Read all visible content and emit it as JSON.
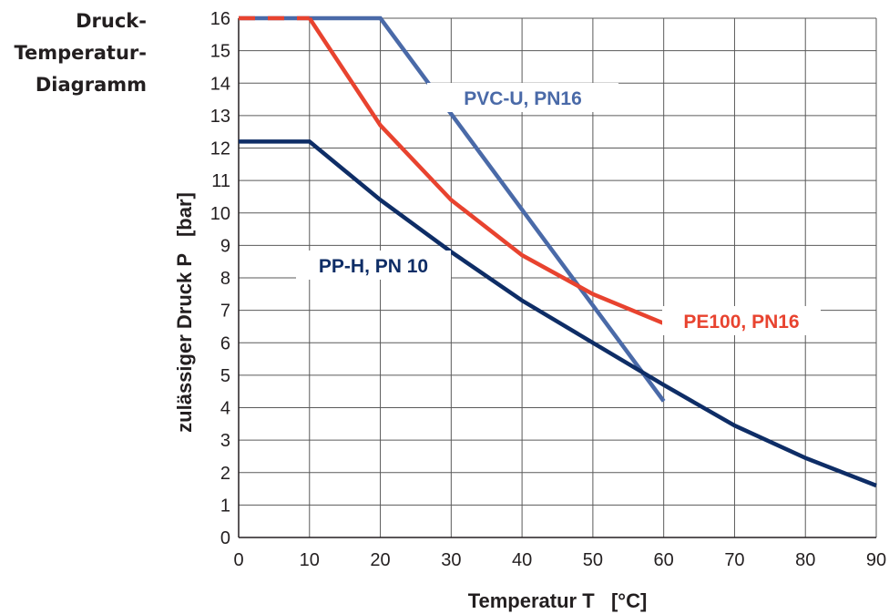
{
  "side_title": [
    "Druck-",
    "Temperatur-",
    "Diagramm"
  ],
  "chart_data": {
    "type": "line",
    "xlabel": "Temperatur T   [°C]",
    "ylabel": "zulässiger Druck P   [bar]",
    "xlim": [
      0,
      90
    ],
    "ylim": [
      0,
      16
    ],
    "x_ticks": [
      "0",
      "10",
      "20",
      "30",
      "40",
      "50",
      "60",
      "70",
      "80",
      "90"
    ],
    "y_ticks": [
      "0",
      "1",
      "2",
      "3",
      "4",
      "5",
      "6",
      "7",
      "8",
      "9",
      "10",
      "11",
      "12",
      "13",
      "14",
      "15",
      "16"
    ],
    "grid": true,
    "series": [
      {
        "name": "PVC-U, PN16",
        "color": "#4a6aa8",
        "x": [
          0,
          20,
          60
        ],
        "y": [
          16,
          16,
          4.2
        ]
      },
      {
        "name": "PE100, PN16",
        "color": "#e8432f",
        "dashed_until": 10,
        "x": [
          0,
          10,
          20,
          30,
          40,
          50,
          60
        ],
        "y": [
          16,
          16,
          12.7,
          10.4,
          8.7,
          7.5,
          6.6
        ]
      },
      {
        "name": "PP-H, PN 10",
        "color": "#0e2d66",
        "x": [
          0,
          10,
          20,
          30,
          40,
          50,
          60,
          70,
          80,
          90
        ],
        "y": [
          12.2,
          12.2,
          10.4,
          8.8,
          7.3,
          6.0,
          4.7,
          3.45,
          2.45,
          1.6
        ]
      }
    ]
  }
}
